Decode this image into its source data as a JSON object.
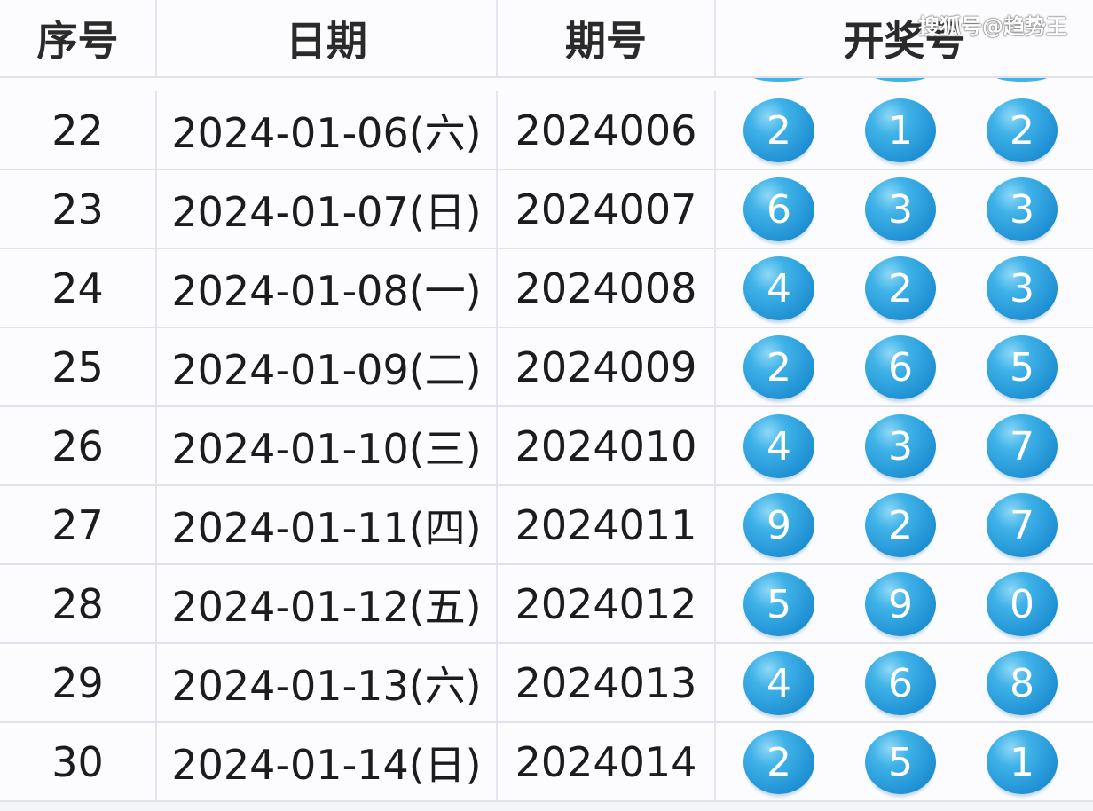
{
  "header": {
    "index": "序号",
    "date": "日期",
    "issue": "期号",
    "numbers": "开奖号"
  },
  "watermark": "搜狐号@趋势王",
  "ball_color": "#2a9ad8",
  "rows": [
    {
      "index": "22",
      "date": "2024-01-06(六)",
      "issue": "2024006",
      "numbers": [
        "2",
        "1",
        "2"
      ]
    },
    {
      "index": "23",
      "date": "2024-01-07(日)",
      "issue": "2024007",
      "numbers": [
        "6",
        "3",
        "3"
      ]
    },
    {
      "index": "24",
      "date": "2024-01-08(一)",
      "issue": "2024008",
      "numbers": [
        "4",
        "2",
        "3"
      ]
    },
    {
      "index": "25",
      "date": "2024-01-09(二)",
      "issue": "2024009",
      "numbers": [
        "2",
        "6",
        "5"
      ]
    },
    {
      "index": "26",
      "date": "2024-01-10(三)",
      "issue": "2024010",
      "numbers": [
        "4",
        "3",
        "7"
      ]
    },
    {
      "index": "27",
      "date": "2024-01-11(四)",
      "issue": "2024011",
      "numbers": [
        "9",
        "2",
        "7"
      ]
    },
    {
      "index": "28",
      "date": "2024-01-12(五)",
      "issue": "2024012",
      "numbers": [
        "5",
        "9",
        "0"
      ]
    },
    {
      "index": "29",
      "date": "2024-01-13(六)",
      "issue": "2024013",
      "numbers": [
        "4",
        "6",
        "8"
      ]
    },
    {
      "index": "30",
      "date": "2024-01-14(日)",
      "issue": "2024014",
      "numbers": [
        "2",
        "5",
        "1"
      ]
    }
  ]
}
